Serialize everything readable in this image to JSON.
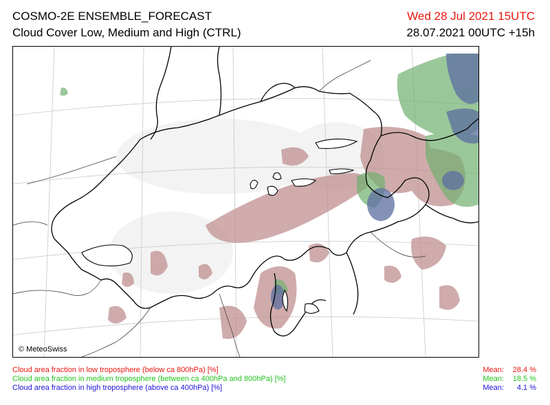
{
  "header": {
    "title": "COSMO-2E ENSEMBLE_FORECAST",
    "subtitle": "Cloud Cover Low, Medium and High (CTRL)",
    "valid_time": "Wed 28 Jul 2021 15UTC",
    "run_time": "28.07.2021 00UTC +15h"
  },
  "map": {
    "copyright": "© MeteoSwiss",
    "colors": {
      "low": "#c09090",
      "medium": "#70b070",
      "high": "#5c6ea0",
      "border": "#000000",
      "grid": "#c8c8c8"
    }
  },
  "legend": [
    {
      "label": "Cloud area fraction in low troposphere (below ca 800hPa) [%]",
      "mean_label": "Mean:",
      "mean_value": "28.4 %",
      "color": "#e8170f"
    },
    {
      "label": "Cloud area fraction in medium troposphere (between ca 400hPa and 800hPa) [%]",
      "mean_label": "Mean:",
      "mean_value": "18.5 %",
      "color": "#22c41c"
    },
    {
      "label": "Cloud area fraction in high troposphere (above ca 400hPa) [%]",
      "mean_label": "Mean:",
      "mean_value": "4.1 %",
      "color": "#1c14d8"
    }
  ]
}
